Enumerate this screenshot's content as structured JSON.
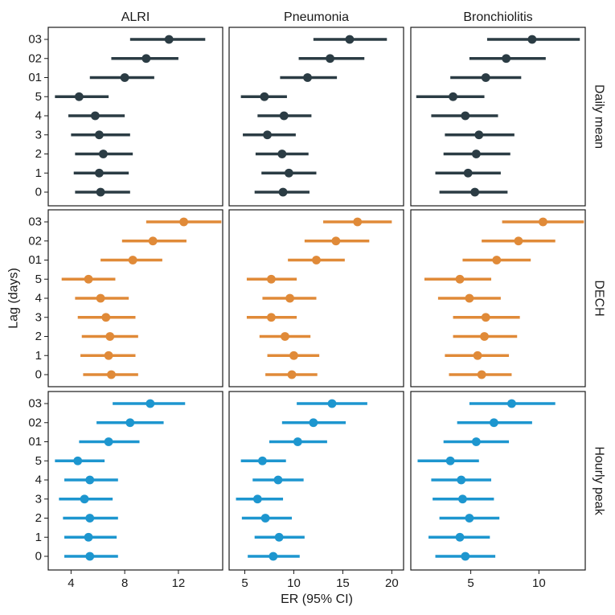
{
  "chart_data": {
    "type": "forest",
    "xlabel": "ER (95% CI)",
    "ylabel": "Lag (days)",
    "categories": [
      "03",
      "02",
      "01",
      "5",
      "4",
      "3",
      "2",
      "1",
      "0"
    ],
    "columns": [
      {
        "title": "ALRI",
        "xlim": [
          2.3,
          15.3
        ],
        "ticks": [
          4,
          8,
          12
        ],
        "tick_labels": [
          "4",
          "8",
          "12"
        ]
      },
      {
        "title": "Pneumonia",
        "xlim": [
          3.4,
          21.2
        ],
        "ticks": [
          5,
          10,
          15,
          20
        ],
        "tick_labels": [
          "5",
          "10",
          "15",
          "20"
        ]
      },
      {
        "title": "Bronchiolitis",
        "xlim": [
          0.6,
          13.4
        ],
        "ticks": [
          5,
          10
        ],
        "tick_labels": [
          "5",
          "10"
        ]
      }
    ],
    "rows": [
      {
        "title": "Daily mean",
        "color": "#2b3c44"
      },
      {
        "title": "DECH",
        "color": "#e08a38"
      },
      {
        "title": "Hourly peak",
        "color": "#1d96cf"
      }
    ],
    "panels": [
      [
        {
          "est": [
            11.3,
            9.6,
            8.0,
            4.6,
            5.8,
            6.1,
            6.4,
            6.1,
            6.2
          ],
          "low": [
            8.4,
            7.0,
            5.4,
            2.8,
            3.8,
            4.0,
            4.3,
            4.2,
            4.3
          ],
          "high": [
            14.0,
            12.0,
            10.2,
            6.8,
            8.0,
            8.4,
            8.6,
            8.3,
            8.4
          ]
        },
        {
          "est": [
            15.7,
            13.7,
            11.4,
            7.0,
            9.0,
            7.3,
            8.8,
            9.5,
            8.9
          ],
          "low": [
            12.0,
            10.5,
            8.6,
            4.6,
            6.3,
            4.8,
            6.1,
            6.7,
            6.0
          ],
          "high": [
            19.5,
            17.2,
            14.4,
            9.3,
            11.8,
            10.2,
            11.5,
            12.3,
            11.6
          ]
        },
        {
          "est": [
            9.5,
            7.6,
            6.1,
            3.7,
            4.6,
            5.6,
            5.4,
            4.8,
            5.3
          ],
          "low": [
            6.2,
            4.9,
            3.5,
            1.0,
            2.1,
            3.1,
            3.0,
            2.4,
            2.7
          ],
          "high": [
            13.0,
            10.5,
            8.7,
            6.0,
            7.0,
            8.2,
            7.9,
            7.2,
            7.7
          ]
        }
      ],
      [
        {
          "est": [
            12.4,
            10.1,
            8.6,
            5.3,
            6.2,
            6.6,
            6.9,
            6.8,
            7.0
          ],
          "low": [
            9.6,
            7.8,
            6.2,
            3.3,
            4.3,
            4.5,
            4.8,
            4.7,
            4.9
          ],
          "high": [
            15.2,
            12.6,
            10.8,
            7.3,
            8.3,
            8.8,
            9.0,
            8.8,
            9.0
          ]
        },
        {
          "est": [
            16.5,
            14.3,
            12.3,
            7.7,
            9.6,
            7.7,
            9.1,
            10.0,
            9.8
          ],
          "low": [
            13.0,
            11.1,
            9.4,
            5.2,
            6.8,
            5.2,
            6.5,
            7.3,
            7.1
          ],
          "high": [
            20.0,
            17.7,
            15.2,
            10.3,
            12.3,
            10.3,
            11.7,
            12.6,
            12.4
          ]
        },
        {
          "est": [
            10.3,
            8.5,
            6.9,
            4.2,
            4.9,
            6.1,
            6.0,
            5.5,
            5.8
          ],
          "low": [
            7.3,
            5.8,
            4.4,
            1.6,
            2.6,
            3.7,
            3.7,
            3.1,
            3.4
          ],
          "high": [
            13.3,
            11.2,
            9.4,
            6.5,
            7.2,
            8.6,
            8.4,
            7.8,
            8.0
          ]
        }
      ],
      [
        {
          "est": [
            9.9,
            8.4,
            6.8,
            4.5,
            5.4,
            5.0,
            5.4,
            5.3,
            5.4
          ],
          "low": [
            7.1,
            5.9,
            4.6,
            2.8,
            3.5,
            3.1,
            3.4,
            3.5,
            3.5
          ],
          "high": [
            12.5,
            10.9,
            9.1,
            6.5,
            7.5,
            7.1,
            7.5,
            7.4,
            7.5
          ]
        },
        {
          "est": [
            13.9,
            12.0,
            10.4,
            6.8,
            8.4,
            6.3,
            7.1,
            8.5,
            7.9
          ],
          "low": [
            10.3,
            8.8,
            7.5,
            4.6,
            5.8,
            4.1,
            4.7,
            6.0,
            5.3
          ],
          "high": [
            17.5,
            15.3,
            13.4,
            9.2,
            11.0,
            8.9,
            9.8,
            11.1,
            10.6
          ]
        },
        {
          "est": [
            8.0,
            6.7,
            5.4,
            3.5,
            4.3,
            4.4,
            4.9,
            4.2,
            4.6
          ],
          "low": [
            4.9,
            4.0,
            3.0,
            1.1,
            2.1,
            2.2,
            2.7,
            1.9,
            2.4
          ],
          "high": [
            11.2,
            9.5,
            7.8,
            5.6,
            6.5,
            6.7,
            7.1,
            6.4,
            6.8
          ]
        }
      ]
    ]
  }
}
